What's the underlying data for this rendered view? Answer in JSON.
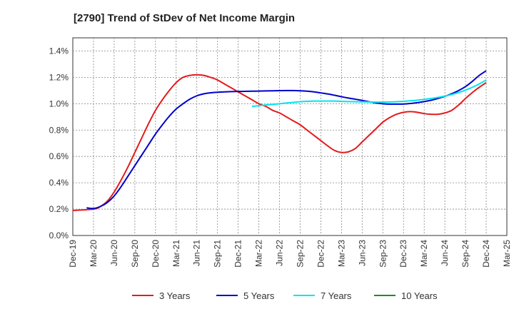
{
  "chart_data": {
    "type": "line",
    "title": "[2790]  Trend of StDev of Net Income Margin",
    "xlabel": "",
    "ylabel": "",
    "x_ticks": [
      "Dec-19",
      "Mar-20",
      "Jun-20",
      "Sep-20",
      "Dec-20",
      "Mar-21",
      "Jun-21",
      "Sep-21",
      "Dec-21",
      "Mar-22",
      "Jun-22",
      "Sep-22",
      "Dec-22",
      "Mar-23",
      "Jun-23",
      "Sep-23",
      "Dec-23",
      "Mar-24",
      "Jun-24",
      "Sep-24",
      "Dec-24",
      "Mar-25"
    ],
    "y_ticks": [
      "0.0%",
      "0.2%",
      "0.4%",
      "0.6%",
      "0.8%",
      "1.0%",
      "1.2%",
      "1.4%"
    ],
    "ylim": [
      0,
      1.5
    ],
    "grid": true,
    "legend_position": "bottom",
    "series": [
      {
        "name": "3 Years",
        "color": "#e41a1c",
        "x": [
          "Dec-19",
          "Mar-20",
          "Apr-20",
          "May-20",
          "Jun-20",
          "Jul-20",
          "Aug-20",
          "Sep-20",
          "Oct-20",
          "Nov-20",
          "Dec-20",
          "Jan-21",
          "Feb-21",
          "Mar-21",
          "Apr-21",
          "May-21",
          "Jun-21",
          "Jul-21",
          "Aug-21",
          "Sep-21",
          "Oct-21",
          "Nov-21",
          "Dec-21",
          "Jan-22",
          "Feb-22",
          "Mar-22",
          "Apr-22",
          "May-22",
          "Jun-22",
          "Jul-22",
          "Aug-22",
          "Sep-22",
          "Oct-22",
          "Nov-22",
          "Dec-22",
          "Jan-23",
          "Feb-23",
          "Mar-23",
          "Apr-23",
          "May-23",
          "Jun-23",
          "Jul-23",
          "Aug-23",
          "Sep-23",
          "Oct-23",
          "Nov-23",
          "Dec-23",
          "Jan-24",
          "Feb-24",
          "Mar-24",
          "Apr-24",
          "May-24",
          "Jun-24",
          "Jul-24",
          "Aug-24",
          "Sep-24",
          "Oct-24",
          "Nov-24",
          "Dec-24"
        ],
        "values": [
          0.19,
          0.2,
          0.22,
          0.26,
          0.33,
          0.42,
          0.52,
          0.63,
          0.74,
          0.85,
          0.95,
          1.03,
          1.1,
          1.16,
          1.2,
          1.215,
          1.22,
          1.215,
          1.2,
          1.18,
          1.15,
          1.12,
          1.09,
          1.06,
          1.03,
          1.0,
          0.98,
          0.95,
          0.93,
          0.9,
          0.87,
          0.84,
          0.8,
          0.76,
          0.72,
          0.68,
          0.645,
          0.63,
          0.635,
          0.66,
          0.71,
          0.76,
          0.81,
          0.86,
          0.895,
          0.92,
          0.935,
          0.94,
          0.935,
          0.925,
          0.92,
          0.92,
          0.93,
          0.95,
          0.99,
          1.04,
          1.085,
          1.125,
          1.16
        ]
      },
      {
        "name": "5 Years",
        "color": "#0000cc",
        "x": [
          "Feb-20",
          "Mar-20",
          "Apr-20",
          "May-20",
          "Jun-20",
          "Jul-20",
          "Aug-20",
          "Sep-20",
          "Oct-20",
          "Nov-20",
          "Dec-20",
          "Jan-21",
          "Feb-21",
          "Mar-21",
          "Apr-21",
          "May-21",
          "Jun-21",
          "Jul-21",
          "Aug-21",
          "Sep-21",
          "Oct-21",
          "Nov-21",
          "Dec-21",
          "Jan-22",
          "Feb-22",
          "Mar-22",
          "Apr-22",
          "May-22",
          "Jun-22",
          "Jul-22",
          "Aug-22",
          "Sep-22",
          "Oct-22",
          "Nov-22",
          "Dec-22",
          "Jan-23",
          "Feb-23",
          "Mar-23",
          "Apr-23",
          "May-23",
          "Jun-23",
          "Jul-23",
          "Aug-23",
          "Sep-23",
          "Oct-23",
          "Nov-23",
          "Dec-23",
          "Jan-24",
          "Feb-24",
          "Mar-24",
          "Apr-24",
          "May-24",
          "Jun-24",
          "Jul-24",
          "Aug-24",
          "Sep-24",
          "Oct-24",
          "Nov-24",
          "Dec-24"
        ],
        "values": [
          0.21,
          0.205,
          0.22,
          0.25,
          0.3,
          0.37,
          0.45,
          0.53,
          0.61,
          0.69,
          0.77,
          0.84,
          0.905,
          0.96,
          1.0,
          1.035,
          1.06,
          1.075,
          1.083,
          1.087,
          1.09,
          1.092,
          1.093,
          1.094,
          1.095,
          1.096,
          1.097,
          1.098,
          1.099,
          1.1,
          1.1,
          1.098,
          1.095,
          1.09,
          1.082,
          1.074,
          1.064,
          1.053,
          1.043,
          1.034,
          1.025,
          1.015,
          1.006,
          1.0,
          0.997,
          0.997,
          0.998,
          1.002,
          1.008,
          1.016,
          1.026,
          1.04,
          1.056,
          1.076,
          1.1,
          1.13,
          1.17,
          1.215,
          1.25
        ]
      },
      {
        "name": "7 Years",
        "color": "#00e5ee",
        "x": [
          "Feb-22",
          "Mar-22",
          "Apr-22",
          "May-22",
          "Jun-22",
          "Jul-22",
          "Aug-22",
          "Sep-22",
          "Oct-22",
          "Nov-22",
          "Dec-22",
          "Jan-23",
          "Feb-23",
          "Mar-23",
          "Apr-23",
          "May-23",
          "Jun-23",
          "Jul-23",
          "Aug-23",
          "Sep-23",
          "Oct-23",
          "Nov-23",
          "Dec-23",
          "Jan-24",
          "Feb-24",
          "Mar-24",
          "Apr-24",
          "May-24",
          "Jun-24",
          "Jul-24",
          "Aug-24",
          "Sep-24",
          "Oct-24",
          "Nov-24",
          "Dec-24"
        ],
        "values": [
          0.98,
          0.985,
          0.99,
          0.995,
          1.0,
          1.005,
          1.01,
          1.015,
          1.018,
          1.02,
          1.02,
          1.02,
          1.02,
          1.018,
          1.016,
          1.015,
          1.014,
          1.013,
          1.012,
          1.012,
          1.013,
          1.015,
          1.018,
          1.022,
          1.027,
          1.033,
          1.04,
          1.048,
          1.058,
          1.07,
          1.085,
          1.103,
          1.125,
          1.15,
          1.18
        ]
      },
      {
        "name": "10 Years",
        "color": "#228b22",
        "x": [],
        "values": []
      }
    ]
  }
}
